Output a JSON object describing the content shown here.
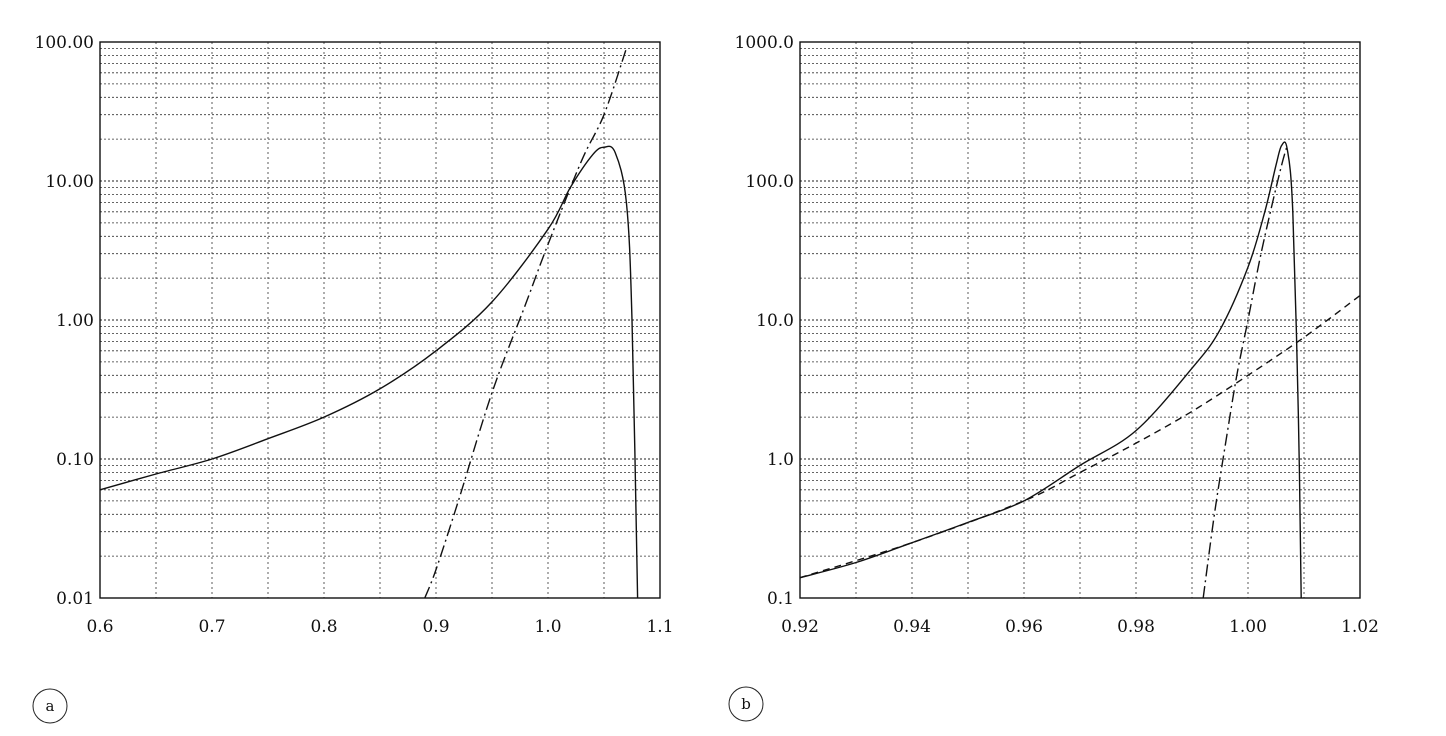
{
  "chart_data": [
    {
      "type": "line",
      "panel_label": "a",
      "xscale": "linear",
      "yscale": "log",
      "xlim": [
        0.6,
        1.1
      ],
      "ylim": [
        0.01,
        100
      ],
      "x_ticks": [
        0.6,
        0.7,
        0.8,
        0.9,
        1.0,
        1.1
      ],
      "x_tick_labels": [
        "0.6",
        "0.7",
        "0.8",
        "0.9",
        "1.0",
        "1.1"
      ],
      "y_ticks": [
        0.01,
        0.1,
        1,
        10,
        100
      ],
      "y_tick_labels": [
        "0.01",
        "0.10",
        "1.00",
        "10.00",
        "100.00"
      ],
      "grid": true,
      "series": [
        {
          "style": "solid",
          "x": [
            0.6,
            0.65,
            0.7,
            0.75,
            0.8,
            0.85,
            0.9,
            0.95,
            1.0,
            1.02,
            1.04,
            1.05,
            1.06,
            1.07,
            1.075,
            1.08
          ],
          "y": [
            0.06,
            0.078,
            0.1,
            0.14,
            0.2,
            0.32,
            0.6,
            1.35,
            4.5,
            9.0,
            15.5,
            17.5,
            16.0,
            7.0,
            1.0,
            0.01
          ]
        },
        {
          "style": "dash-dot",
          "x": [
            0.89,
            0.9,
            0.92,
            0.95,
            0.98,
            1.0,
            1.03,
            1.05,
            1.07
          ],
          "y": [
            0.01,
            0.016,
            0.05,
            0.3,
            1.3,
            3.5,
            14.0,
            30.0,
            90.0
          ]
        }
      ]
    },
    {
      "type": "line",
      "panel_label": "b",
      "xscale": "linear",
      "yscale": "log",
      "xlim": [
        0.92,
        1.02
      ],
      "ylim": [
        0.1,
        1000
      ],
      "x_ticks": [
        0.92,
        0.94,
        0.96,
        0.98,
        1.0,
        1.02
      ],
      "x_tick_labels": [
        "0.92",
        "0.94",
        "0.96",
        "0.98",
        "1.00",
        "1.02"
      ],
      "y_ticks": [
        0.1,
        1,
        10,
        100,
        1000
      ],
      "y_tick_labels": [
        "0.1",
        "1.0",
        "10.0",
        "100.0",
        "1000.0"
      ],
      "grid": true,
      "series": [
        {
          "style": "solid",
          "x": [
            0.92,
            0.93,
            0.94,
            0.95,
            0.96,
            0.97,
            0.98,
            0.99,
            0.995,
            1.0,
            1.003,
            1.005,
            1.006,
            1.007,
            1.008,
            1.009,
            1.0095
          ],
          "y": [
            0.14,
            0.18,
            0.25,
            0.35,
            0.5,
            0.9,
            1.6,
            4.5,
            8.5,
            24.0,
            60.0,
            130.0,
            180.0,
            170.0,
            60.0,
            2.0,
            0.1
          ]
        },
        {
          "style": "dashed",
          "x": [
            0.92,
            0.94,
            0.96,
            0.97,
            0.98,
            0.99,
            1.0,
            1.01,
            1.02
          ],
          "y": [
            0.14,
            0.25,
            0.5,
            0.8,
            1.3,
            2.2,
            4.0,
            7.5,
            15.0
          ]
        },
        {
          "style": "dash-dot",
          "x": [
            0.992,
            0.994,
            0.996,
            0.998,
            1.0,
            1.002,
            1.004,
            1.006,
            1.007
          ],
          "y": [
            0.1,
            0.4,
            1.3,
            4.0,
            10.0,
            26.0,
            60.0,
            130.0,
            180.0
          ]
        }
      ]
    }
  ]
}
